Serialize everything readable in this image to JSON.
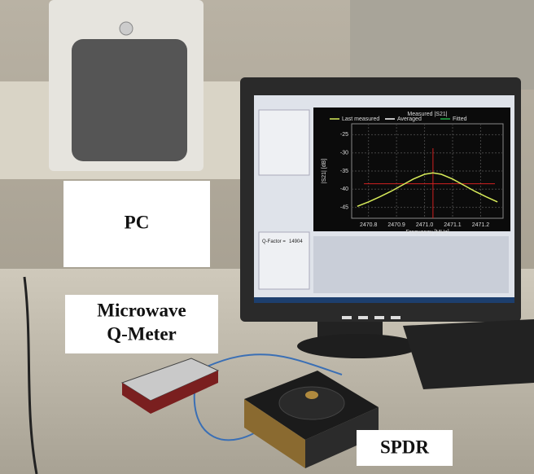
{
  "labels": {
    "pc": "PC",
    "q_meter": [
      "Microwave",
      "Q-Meter"
    ],
    "spdr": "SPDR"
  },
  "screen": {
    "q_factor_label": "Q-Factor =",
    "q_factor_value": "14904",
    "chart_data": {
      "type": "line",
      "title": "Measured |S21|",
      "x_label": "Frequency [MHz]",
      "y_label": "|S21| [dB]",
      "x": [
        2470.76,
        2470.8,
        2470.84,
        2470.88,
        2470.92,
        2470.96,
        2471.0,
        2471.03,
        2471.06,
        2471.1,
        2471.14,
        2471.18,
        2471.22,
        2471.26
      ],
      "series": [
        {
          "name": "Last measured",
          "color": "#d8ec5a",
          "values": [
            -44.7,
            -43.5,
            -42.1,
            -40.6,
            -38.9,
            -37.2,
            -35.9,
            -35.5,
            -35.9,
            -37.2,
            -38.9,
            -40.6,
            -42.1,
            -43.5
          ]
        },
        {
          "name": "Averaged",
          "color": "#ffffff"
        },
        {
          "name": "Fitted",
          "color": "#22b04a"
        }
      ],
      "xlim": [
        2470.74,
        2471.28
      ],
      "xticks": [
        2470.8,
        2470.9,
        {
          "value": 2471.0,
          "label": "2471.0"
        },
        2471.1,
        2471.2
      ],
      "ylim": [
        -48,
        -22
      ],
      "yticks": [
        -25,
        -30,
        -35,
        -40,
        -45
      ],
      "grid": true
    }
  }
}
